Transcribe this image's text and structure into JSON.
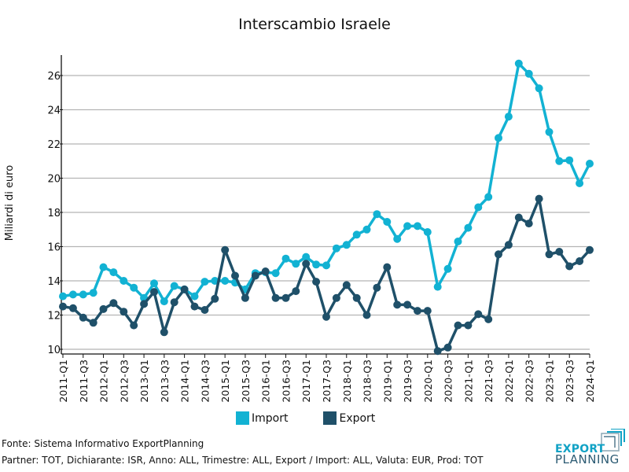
{
  "chart_data": {
    "type": "line",
    "title": "Interscambio Israele",
    "xlabel": "",
    "ylabel": "Miliardi di euro",
    "ylim": [
      9.8,
      27.2
    ],
    "yticks": [
      10,
      12,
      14,
      16,
      18,
      20,
      22,
      24,
      26
    ],
    "grid": true,
    "legend_position": "bottom",
    "x": [
      "2011-Q1",
      "2011-Q2",
      "2011-Q3",
      "2011-Q4",
      "2012-Q1",
      "2012-Q2",
      "2012-Q3",
      "2012-Q4",
      "2013-Q1",
      "2013-Q2",
      "2013-Q3",
      "2013-Q4",
      "2014-Q1",
      "2014-Q2",
      "2014-Q3",
      "2014-Q4",
      "2015-Q1",
      "2015-Q2",
      "2015-Q3",
      "2015-Q4",
      "2016-Q1",
      "2016-Q2",
      "2016-Q3",
      "2016-Q4",
      "2017-Q1",
      "2017-Q2",
      "2017-Q3",
      "2017-Q4",
      "2018-Q1",
      "2018-Q2",
      "2018-Q3",
      "2018-Q4",
      "2019-Q1",
      "2019-Q2",
      "2019-Q3",
      "2019-Q4",
      "2020-Q1",
      "2020-Q2",
      "2020-Q3",
      "2020-Q4",
      "2021-Q1",
      "2021-Q2",
      "2021-Q3",
      "2021-Q4",
      "2022-Q1",
      "2022-Q2",
      "2022-Q3",
      "2022-Q4",
      "2023-Q1",
      "2023-Q2",
      "2023-Q3",
      "2023-Q4",
      "2024-Q1"
    ],
    "xtick_labels": [
      "2011-Q1",
      "2011-Q3",
      "2012-Q1",
      "2012-Q3",
      "2013-Q1",
      "2013-Q3",
      "2014-Q1",
      "2014-Q3",
      "2015-Q1",
      "2015-Q3",
      "2016-Q1",
      "2016-Q3",
      "2017-Q1",
      "2017-Q3",
      "2018-Q1",
      "2018-Q3",
      "2019-Q1",
      "2019-Q3",
      "2020-Q1",
      "2020-Q3",
      "2021-Q1",
      "2021-Q3",
      "2022-Q1",
      "2022-Q3",
      "2023-Q1",
      "2023-Q3",
      "2024-Q1"
    ],
    "series": [
      {
        "name": "Import",
        "color": "#12b2d3",
        "values": [
          13.1,
          13.2,
          13.2,
          13.3,
          14.8,
          14.5,
          14.0,
          13.6,
          13.0,
          13.85,
          12.8,
          13.7,
          13.5,
          13.1,
          13.95,
          14.0,
          14.0,
          13.9,
          13.5,
          14.45,
          14.5,
          14.45,
          15.3,
          15.0,
          15.4,
          14.95,
          14.9,
          15.9,
          16.1,
          16.7,
          17.0,
          17.9,
          17.45,
          16.45,
          17.2,
          17.2,
          16.85,
          13.65,
          14.7,
          16.3,
          17.1,
          18.3,
          18.9,
          22.35,
          23.6,
          26.7,
          26.1,
          25.25,
          22.7,
          21.0,
          21.05,
          19.7,
          20.85
        ]
      },
      {
        "name": "Export",
        "color": "#1f5069",
        "values": [
          12.5,
          12.4,
          11.85,
          11.55,
          12.35,
          12.7,
          12.2,
          11.4,
          12.65,
          13.35,
          11.0,
          12.75,
          13.5,
          12.5,
          12.3,
          12.95,
          15.8,
          14.3,
          13.0,
          14.3,
          14.55,
          13.0,
          13.0,
          13.4,
          15.0,
          13.95,
          11.9,
          13.0,
          13.75,
          13.0,
          12.0,
          13.6,
          14.8,
          12.6,
          12.6,
          12.25,
          12.25,
          9.9,
          10.1,
          11.4,
          11.4,
          12.05,
          11.75,
          15.55,
          16.1,
          17.7,
          17.35,
          18.8,
          15.55,
          15.7,
          14.85,
          15.15,
          15.8
        ]
      }
    ]
  },
  "footer": {
    "source": "Fonte: Sistema Informativo ExportPlanning",
    "params": "Partner: TOT, Dichiarante: ISR, Anno: ALL, Trimestre: ALL, Export / Import: ALL, Valuta: EUR, Prod: TOT"
  },
  "logo": {
    "line1": "EXPORT",
    "line2": "PLANNING"
  }
}
